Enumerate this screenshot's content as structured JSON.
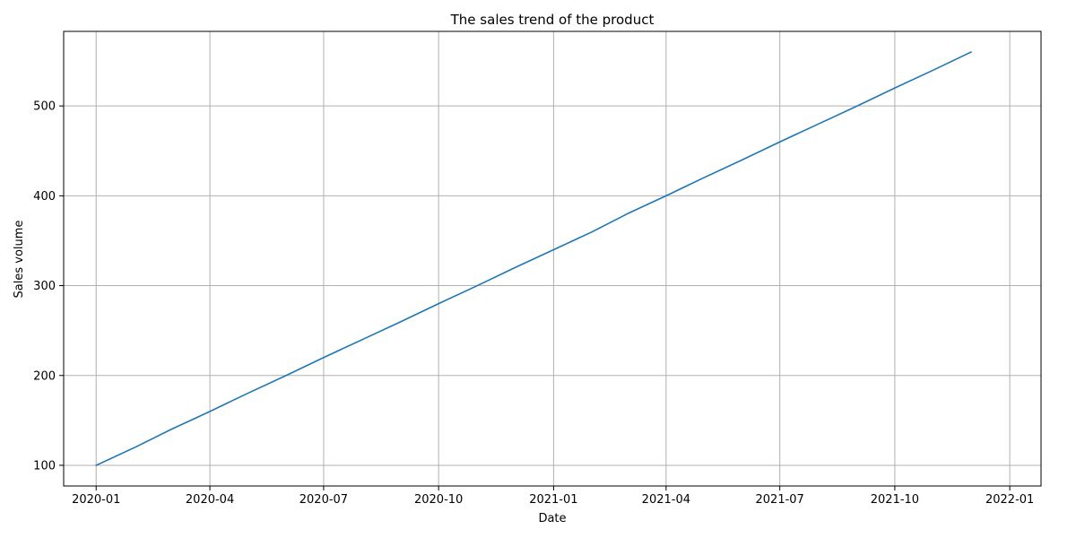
{
  "chart_data": {
    "type": "line",
    "title": "The sales trend of the product",
    "xlabel": "Date",
    "ylabel": "Sales volume",
    "x": [
      "2020-01-01",
      "2020-02-01",
      "2020-03-01",
      "2020-04-01",
      "2020-05-01",
      "2020-06-01",
      "2020-07-01",
      "2020-08-01",
      "2020-09-01",
      "2020-10-01",
      "2020-11-01",
      "2020-12-01",
      "2021-01-01",
      "2021-02-01",
      "2021-03-01",
      "2021-04-01",
      "2021-05-01",
      "2021-06-01",
      "2021-07-01",
      "2021-08-01",
      "2021-09-01",
      "2021-10-01",
      "2021-11-01",
      "2021-12-01"
    ],
    "series": [
      {
        "values": [
          100,
          120,
          140,
          160,
          180,
          200,
          220,
          240,
          260,
          280,
          300,
          320,
          340,
          360,
          380,
          400,
          420,
          440,
          460,
          480,
          500,
          520,
          540,
          560
        ],
        "color": "#1f77b4"
      }
    ],
    "xlim": [
      "2019-12-06",
      "2022-01-26"
    ],
    "ylim": [
      77,
      583
    ],
    "xticks": [
      "2020-01",
      "2020-04",
      "2020-07",
      "2020-10",
      "2021-01",
      "2021-04",
      "2021-07",
      "2021-10",
      "2022-01"
    ],
    "yticks": [
      100,
      200,
      300,
      400,
      500
    ],
    "grid": true,
    "grid_color": "#b0b0b0",
    "legend": false
  }
}
